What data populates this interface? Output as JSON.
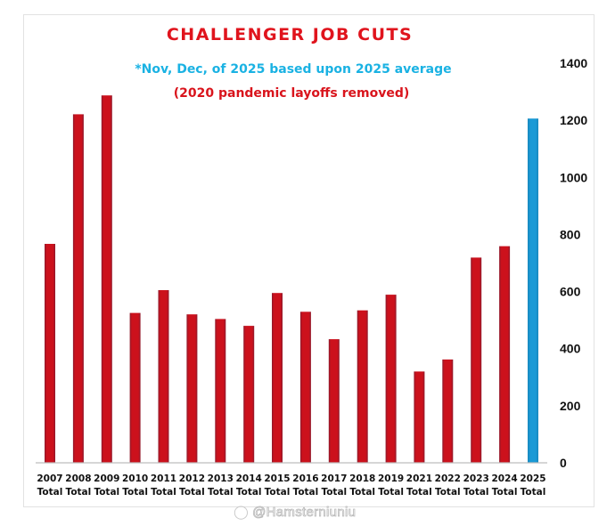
{
  "chart_data": {
    "type": "bar",
    "title": "CHALLENGER JOB CUTS",
    "subtitles": [
      "*Nov, Dec, of 2025 based upon 2025 average",
      "(2020 pandemic layoffs removed)"
    ],
    "xlabel": "",
    "ylabel": "",
    "categories": [
      [
        "2007",
        "Total"
      ],
      [
        "2008",
        "Total"
      ],
      [
        "2009",
        "Total"
      ],
      [
        "2010",
        "Total"
      ],
      [
        "2011",
        "Total"
      ],
      [
        "2012",
        "Total"
      ],
      [
        "2013",
        "Total"
      ],
      [
        "2014",
        "Total"
      ],
      [
        "2015",
        "Total"
      ],
      [
        "2016",
        "Total"
      ],
      [
        "2017",
        "Total"
      ],
      [
        "2018",
        "Total"
      ],
      [
        "2019",
        "Total"
      ],
      [
        "2021",
        "Total"
      ],
      [
        "2022",
        "Total"
      ],
      [
        "2023",
        "Total"
      ],
      [
        "2024",
        "Total"
      ],
      [
        "2025",
        "Total"
      ]
    ],
    "values": [
      767,
      1221,
      1287,
      525,
      605,
      520,
      504,
      480,
      595,
      529,
      433,
      534,
      589,
      320,
      362,
      719,
      759,
      1206
    ],
    "highlight_index": 17,
    "colors": {
      "default": "#cc111c",
      "highlight": "#1a9ad6",
      "title": "#e0141d",
      "subtitle1": "#1ab2e3",
      "subtitle2": "#d9141c"
    },
    "ylim": [
      0,
      1400
    ],
    "yticks": [
      0,
      200,
      400,
      600,
      800,
      1000,
      1200,
      1400
    ],
    "yaxis_side": "right",
    "grid": false,
    "legend": "none"
  },
  "watermark": {
    "icon": "weibo-icon",
    "text": "@Hamsterniuniu"
  }
}
